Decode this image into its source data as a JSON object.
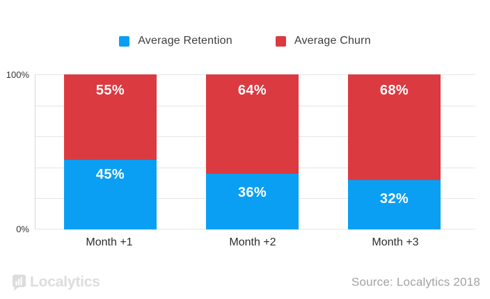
{
  "legend": {
    "items": [
      {
        "label": "Average Retention",
        "color": "#0b9ff3"
      },
      {
        "label": "Average Churn",
        "color": "#db3a41"
      }
    ]
  },
  "chart_data": {
    "type": "bar",
    "stacked": true,
    "orientation": "vertical",
    "categories": [
      "Month +1",
      "Month +2",
      "Month +3"
    ],
    "series": [
      {
        "name": "Average Retention",
        "color": "#0b9ff3",
        "values": [
          45,
          36,
          32
        ]
      },
      {
        "name": "Average Churn",
        "color": "#db3a41",
        "values": [
          55,
          64,
          68
        ]
      }
    ],
    "data_labels": {
      "retention": [
        "45%",
        "36%",
        "32%"
      ],
      "churn": [
        "55%",
        "64%",
        "68%"
      ]
    },
    "ylim": [
      0,
      100
    ],
    "y_axis": {
      "tick_labels": [
        "100%",
        "0%"
      ],
      "gridline_step_percent": 20,
      "grid": true
    },
    "legend_position": "top"
  },
  "footer": {
    "logo_text": "Localytics",
    "source_text": "Source: Localytics 2018"
  },
  "colors": {
    "retention_blue": "#0b9ff3",
    "churn_red": "#db3a41",
    "gridline": "#e7e4e4",
    "axis_text": "#333333",
    "category_text": "#2d2d2d",
    "legend_text": "#3c3c3c",
    "source_text": "#a2a2a2",
    "logo_gray": "#dcdcdc",
    "background": "#ffffff"
  }
}
